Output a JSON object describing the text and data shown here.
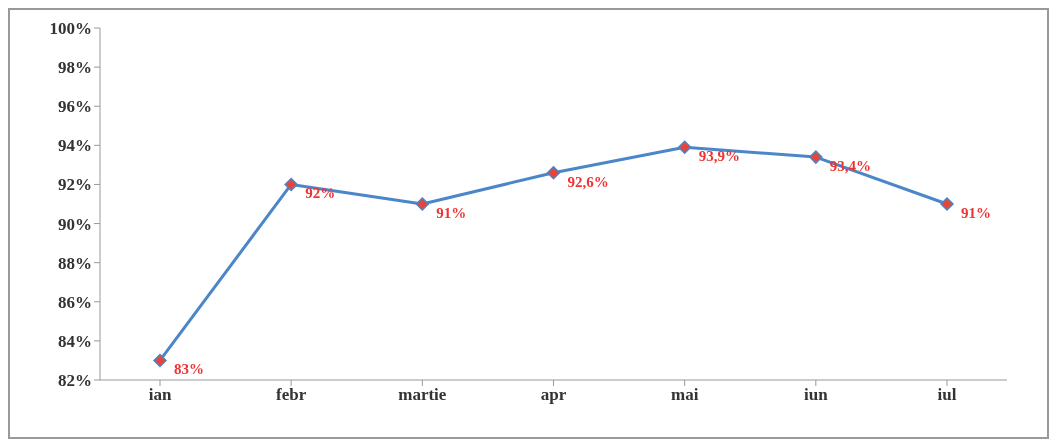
{
  "chart_data": {
    "type": "line",
    "categories": [
      "ian",
      "febr",
      "martie",
      "apr",
      "mai",
      "iun",
      "iul"
    ],
    "series": [
      {
        "color": "#4a86c8",
        "values": [
          83,
          92,
          91,
          92.6,
          93.9,
          93.4,
          91
        ],
        "value_labels": [
          "83%",
          "92%",
          "91%",
          "92,6%",
          "93,9%",
          "93,4%",
          "91%"
        ]
      }
    ],
    "ylim": [
      82,
      100
    ],
    "yticks": [
      {
        "value": 82,
        "label": "82%"
      },
      {
        "value": 84,
        "label": "84%"
      },
      {
        "value": 86,
        "label": "86%"
      },
      {
        "value": 88,
        "label": "88%"
      },
      {
        "value": 90,
        "label": "90%"
      },
      {
        "value": 92,
        "label": "92%"
      },
      {
        "value": 94,
        "label": "94%"
      },
      {
        "value": 96,
        "label": "96%"
      },
      {
        "value": 98,
        "label": "98%"
      },
      {
        "value": 100,
        "label": "100%"
      }
    ],
    "grid": false,
    "legend": false,
    "marker": "diamond",
    "line_style": "solid"
  }
}
